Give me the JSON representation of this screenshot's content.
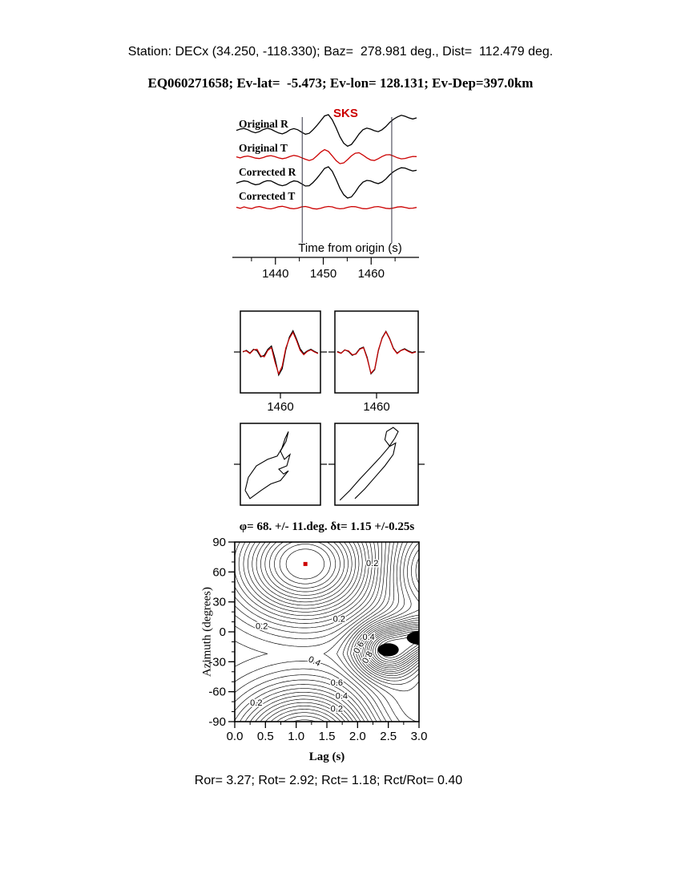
{
  "header": {
    "line1": "Station: DECx (34.250, -118.330); Baz=  278.981 deg., Dist=  112.479 deg.",
    "line2": "EQ060271658; Ev-lat=  -5.473; Ev-lon= 128.131; Ev-Dep=397.0km"
  },
  "colors": {
    "red": "#cc0000",
    "black": "#000000",
    "window_line": "#333344"
  },
  "footer": {
    "stats": "Ror= 3.27; Rot= 2.92; Rct= 1.18; Rct/Rot= 0.40"
  },
  "chart_data": [
    {
      "id": "waveforms",
      "type": "line",
      "xlabel": "Time from origin (s)",
      "phase_label": "SKS",
      "x_range": [
        1431,
        1470
      ],
      "xticks": [
        1440,
        1450,
        1460
      ],
      "xticks_minor": [
        1435,
        1445,
        1455,
        1465
      ],
      "window_times": [
        1445.6,
        1464.3
      ],
      "series": [
        {
          "label": "Original R",
          "color": "#000000",
          "values": [
            0.02,
            0.1,
            0.14,
            0.06,
            -0.06,
            -0.13,
            -0.06,
            0.07,
            0.15,
            0.1,
            -0.03,
            -0.14,
            -0.2,
            -0.1,
            0.06,
            0.13,
            0.06,
            -0.09,
            -0.22,
            -0.16,
            0.06,
            0.32,
            0.62,
            0.92,
            1.0,
            0.68,
            0.18,
            -0.38,
            -0.78,
            -0.97,
            -0.86,
            -0.55,
            -0.2,
            0.06,
            0.16,
            0.1,
            0.0,
            -0.06,
            0.06,
            0.26,
            0.52,
            0.72,
            0.86,
            0.96,
            0.9,
            0.8,
            0.73,
            0.8
          ]
        },
        {
          "label": "Original T",
          "color": "#cc0000",
          "values": [
            0.03,
            -0.07,
            0.05,
            0.11,
            0.02,
            -0.09,
            -0.13,
            -0.04,
            0.09,
            0.15,
            0.06,
            -0.07,
            -0.15,
            -0.08,
            0.07,
            0.17,
            0.1,
            -0.05,
            -0.2,
            -0.32,
            -0.2,
            0.12,
            0.48,
            0.72,
            0.55,
            0.12,
            -0.33,
            -0.62,
            -0.55,
            -0.24,
            0.12,
            0.38,
            0.42,
            0.2,
            -0.06,
            -0.27,
            -0.32,
            -0.15,
            0.06,
            0.22,
            0.24,
            0.1,
            -0.06,
            -0.16,
            -0.12,
            -0.02,
            0.07,
            0.05
          ]
        },
        {
          "label": "Corrected R",
          "color": "#000000",
          "values": [
            -0.02,
            0.06,
            0.12,
            0.08,
            -0.04,
            -0.12,
            -0.08,
            0.05,
            0.13,
            0.12,
            0.0,
            -0.12,
            -0.18,
            -0.12,
            0.03,
            0.12,
            0.08,
            -0.06,
            -0.2,
            -0.18,
            0.02,
            0.28,
            0.58,
            0.9,
            1.0,
            0.72,
            0.22,
            -0.34,
            -0.74,
            -0.95,
            -0.88,
            -0.58,
            -0.22,
            0.04,
            0.15,
            0.12,
            0.02,
            -0.05,
            0.05,
            0.24,
            0.5,
            0.7,
            0.84,
            0.94,
            0.92,
            0.82,
            0.74,
            0.78
          ]
        },
        {
          "label": "Corrected T",
          "color": "#cc0000",
          "values": [
            0.06,
            -0.09,
            0.11,
            -0.05,
            -0.13,
            0.07,
            0.15,
            0.02,
            -0.11,
            -0.17,
            -0.05,
            0.13,
            0.19,
            0.07,
            -0.09,
            -0.15,
            -0.07,
            0.11,
            0.17,
            0.05,
            -0.13,
            -0.19,
            -0.09,
            0.09,
            0.17,
            0.11,
            -0.07,
            -0.15,
            -0.11,
            0.05,
            0.15,
            0.13,
            0.0,
            -0.13,
            -0.15,
            -0.03,
            0.11,
            0.15,
            0.05,
            -0.09,
            -0.13,
            -0.05,
            0.09,
            0.13,
            0.03,
            -0.09,
            -0.07,
            0.03
          ]
        }
      ]
    },
    {
      "id": "waveform-window-pair",
      "type": "line",
      "panels": [
        {
          "label": "1460",
          "black": [
            0.0,
            0.06,
            -0.04,
            0.1,
            0.04,
            -0.18,
            -0.12,
            0.1,
            0.22,
            -0.25,
            -0.85,
            -0.62,
            0.08,
            0.55,
            0.78,
            0.48,
            0.12,
            -0.06,
            0.04,
            0.1,
            0.02,
            -0.04
          ],
          "red": [
            0.02,
            0.04,
            -0.06,
            0.08,
            0.1,
            -0.14,
            -0.18,
            0.06,
            0.16,
            -0.38,
            -0.8,
            -0.52,
            0.14,
            0.5,
            0.72,
            0.42,
            0.06,
            -0.1,
            0.02,
            0.08,
            0.0,
            -0.06
          ]
        },
        {
          "label": "1460",
          "black": [
            0.02,
            -0.04,
            0.08,
            0.02,
            -0.12,
            -0.06,
            0.12,
            0.18,
            -0.2,
            -0.8,
            -0.65,
            0.05,
            0.52,
            0.76,
            0.5,
            0.14,
            -0.04,
            0.06,
            0.12,
            0.04,
            -0.02,
            0.02
          ],
          "red": [
            0.0,
            -0.05,
            0.07,
            0.04,
            -0.1,
            -0.08,
            0.1,
            0.16,
            -0.24,
            -0.78,
            -0.62,
            0.08,
            0.5,
            0.74,
            0.48,
            0.12,
            -0.06,
            0.05,
            0.1,
            0.02,
            -0.04,
            0.0
          ]
        }
      ]
    },
    {
      "id": "particle-motion",
      "type": "line",
      "panels": [
        {
          "points": [
            [
              0.06,
              0.82
            ],
            [
              0.1,
              0.66
            ],
            [
              0.2,
              0.52
            ],
            [
              0.34,
              0.44
            ],
            [
              0.46,
              0.4
            ],
            [
              0.52,
              0.3
            ],
            [
              0.56,
              0.18
            ],
            [
              0.6,
              0.1
            ],
            [
              0.57,
              0.22
            ],
            [
              0.5,
              0.34
            ],
            [
              0.55,
              0.44
            ],
            [
              0.62,
              0.38
            ],
            [
              0.58,
              0.52
            ],
            [
              0.48,
              0.56
            ],
            [
              0.54,
              0.62
            ],
            [
              0.6,
              0.58
            ],
            [
              0.5,
              0.7
            ],
            [
              0.38,
              0.74
            ],
            [
              0.26,
              0.82
            ],
            [
              0.12,
              0.92
            ],
            [
              0.06,
              0.82
            ]
          ]
        },
        {
          "points": [
            [
              0.06,
              0.94
            ],
            [
              0.18,
              0.82
            ],
            [
              0.3,
              0.68
            ],
            [
              0.42,
              0.55
            ],
            [
              0.54,
              0.42
            ],
            [
              0.64,
              0.3
            ],
            [
              0.72,
              0.18
            ],
            [
              0.76,
              0.1
            ],
            [
              0.7,
              0.05
            ],
            [
              0.62,
              0.1
            ],
            [
              0.6,
              0.2
            ],
            [
              0.66,
              0.28
            ],
            [
              0.73,
              0.24
            ],
            [
              0.7,
              0.38
            ],
            [
              0.6,
              0.52
            ],
            [
              0.48,
              0.66
            ],
            [
              0.36,
              0.8
            ],
            [
              0.24,
              0.92
            ]
          ]
        }
      ]
    },
    {
      "id": "splitting-contour",
      "type": "contour",
      "title": "φ= 68. +/- 11.deg. δt= 1.15 +/-0.25s",
      "xlabel": "Lag (s)",
      "ylabel": "Azimuth (degrees)",
      "xlim": [
        0,
        3
      ],
      "ylim": [
        -90,
        90
      ],
      "xticks": [
        0.0,
        0.5,
        1.0,
        1.5,
        2.0,
        2.5,
        3.0
      ],
      "xminor_step": 0.25,
      "yticks": [
        90,
        60,
        30,
        0,
        -30,
        -60,
        -90
      ],
      "yminor_step": 10,
      "best_fit": {
        "phi_deg": 68,
        "phi_err_deg": 11,
        "dt_s": 1.15,
        "dt_err_s": 0.25
      },
      "marker": {
        "x": 1.15,
        "y": 68,
        "color": "#cc0000"
      },
      "contour_levels_labeled": [
        0.2,
        0.4,
        0.6,
        0.8
      ],
      "annotations": [
        {
          "text": "0.2",
          "x": 2.24,
          "y": 66,
          "rot": 0
        },
        {
          "text": "0.2",
          "x": 0.44,
          "y": 3,
          "rot": 0
        },
        {
          "text": "0.2",
          "x": 1.7,
          "y": 10,
          "rot": 0
        },
        {
          "text": "0.4",
          "x": 2.18,
          "y": -8,
          "rot": 0
        },
        {
          "text": "0.6",
          "x": 2.06,
          "y": -17,
          "rot": -60
        },
        {
          "text": "0.8",
          "x": 2.2,
          "y": -27,
          "rot": -60
        },
        {
          "text": "0.4",
          "x": 1.28,
          "y": -32,
          "rot": 25
        },
        {
          "text": "0.6",
          "x": 1.66,
          "y": -54,
          "rot": 0
        },
        {
          "text": "0.4",
          "x": 1.74,
          "y": -67,
          "rot": 0
        },
        {
          "text": "0.2",
          "x": 1.66,
          "y": -80,
          "rot": 0
        },
        {
          "text": "0.2",
          "x": 0.35,
          "y": -74,
          "rot": 0
        }
      ],
      "surface_model": {
        "period_deg": 180,
        "basin": {
          "x": 1.15,
          "y": 68,
          "sx": 1.15,
          "sy": 55,
          "depth": 0.97
        },
        "peaks": [
          {
            "x": 2.5,
            "y": -18,
            "sx": 0.5,
            "sy": 26,
            "amp": 0.85
          },
          {
            "x": 3.25,
            "y": 62,
            "sx": 0.8,
            "sy": 45,
            "amp": 0.5
          },
          {
            "x": 3.05,
            "y": -5,
            "sx": 0.35,
            "sy": 18,
            "amp": 0.5
          },
          {
            "x": 2.7,
            "y": -80,
            "sx": 0.8,
            "sy": 40,
            "amp": 0.2
          }
        ],
        "filled_cores": [
          {
            "x": 2.5,
            "y": -18,
            "rx": 0.17,
            "ry": 6.5
          },
          {
            "x": 3.02,
            "y": -6,
            "rx": 0.22,
            "ry": 7.0
          }
        ],
        "levels_min": 0.1,
        "levels_max": 1.8,
        "levels_step": 0.05
      }
    }
  ]
}
